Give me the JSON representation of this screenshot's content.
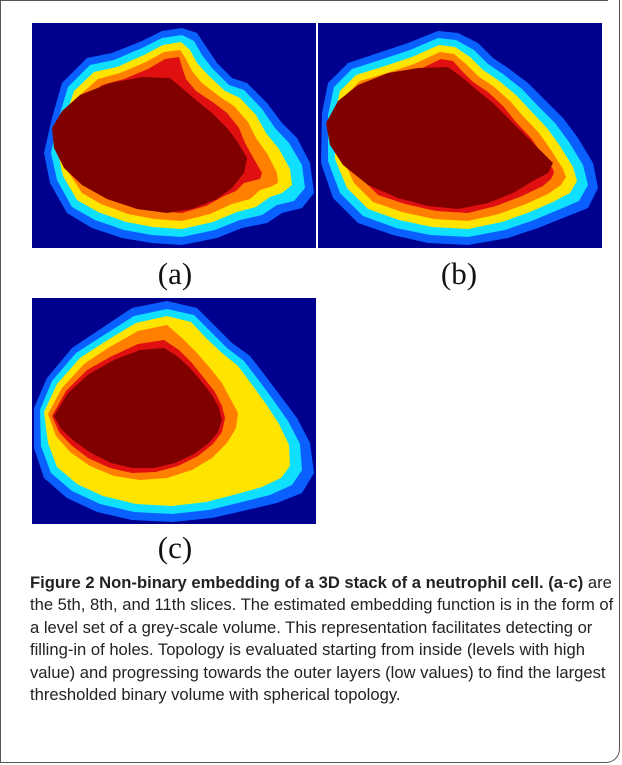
{
  "panels": [
    {
      "label": "(a)",
      "slice": "5th"
    },
    {
      "label": "(b)",
      "slice": "8th"
    },
    {
      "label": "(c)",
      "slice": "11th"
    }
  ],
  "colors": {
    "background": "#00008f",
    "core": "#800000",
    "red": "#e01010",
    "orange": "#ff8000",
    "yellow": "#ffe400",
    "cyan": "#10e0ff",
    "light_blue": "#0a60ff"
  },
  "caption": {
    "figure_label": "Figure 2",
    "title": "Non-binary embedding of a 3D stack of a neutrophil cell.",
    "range_label": "(a",
    "range_dash": "-",
    "range_end": "c)",
    "text": "are the 5th, 8th, and 11th slices. The estimated embedding function is in the form of a level set of a grey-scale volume. This representation facilitates detecting or filling-in of holes. Topology is evaluated starting from inside (levels with high value) and progressing towards the outer layers (low values) to find the largest thresholded binary volume with spherical topology."
  }
}
